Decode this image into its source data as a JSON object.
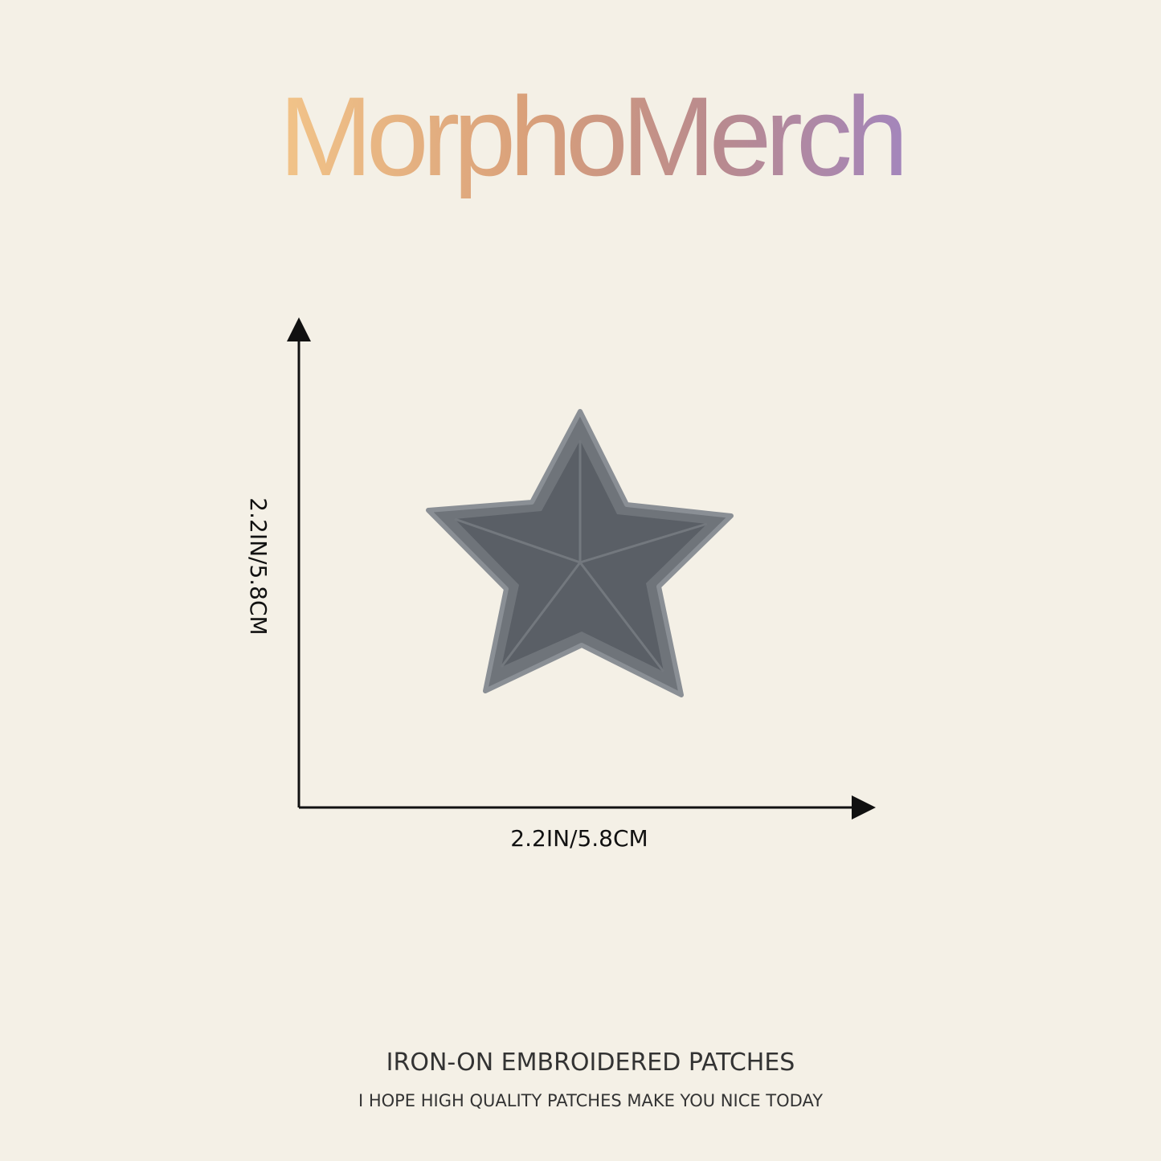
{
  "brand": "MorphoMerch",
  "dimensions": {
    "height": "2.2IN/5.8CM",
    "width": "2.2IN/5.8CM"
  },
  "footer": {
    "title": "IRON-ON EMBROIDERED PATCHES",
    "subtitle": "I HOPE HIGH QUALITY PATCHES MAKE YOU NICE TODAY"
  }
}
